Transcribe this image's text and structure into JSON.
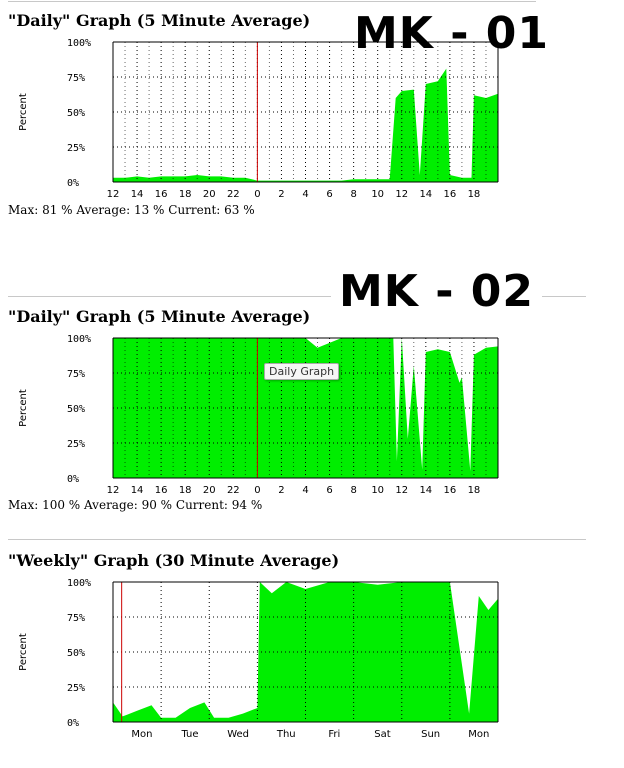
{
  "labels": {
    "mk01": "MK - 01",
    "mk02": "MK - 02",
    "tooltip": "Daily Graph"
  },
  "graphs": [
    {
      "title": "\"Daily\" Graph (5 Minute Average)",
      "stats": "Max: 81 % Average: 13 % Current: 63 %"
    },
    {
      "title": "\"Daily\" Graph (5 Minute Average)",
      "stats": "Max: 100 % Average: 90 % Current: 94 %"
    },
    {
      "title": "\"Weekly\" Graph (30 Minute Average)",
      "stats": ""
    }
  ],
  "colors": {
    "fill": "#00ee00",
    "marker": "#cc0000",
    "grid": "#000000",
    "frame": "#000000"
  },
  "chart_data": [
    {
      "type": "area",
      "title": "\"Daily\" Graph (5 Minute Average)",
      "ylabel": "Percent",
      "ylim": [
        0,
        100
      ],
      "yticks": [
        "0%",
        "25%",
        "50%",
        "75%",
        "100%"
      ],
      "xticks": [
        "12",
        "14",
        "16",
        "18",
        "20",
        "22",
        "0",
        "2",
        "4",
        "6",
        "8",
        "10",
        "12",
        "14",
        "16",
        "18"
      ],
      "xlim": [
        0,
        32
      ],
      "marker_x": 12,
      "grid": true,
      "x": [
        0,
        1,
        2,
        3,
        4,
        5,
        6,
        7,
        8,
        9,
        10,
        11,
        12,
        13,
        14,
        15,
        16,
        17,
        18,
        19,
        20,
        21,
        22,
        23,
        23.5,
        24,
        25,
        25.5,
        26,
        27,
        27.7,
        28,
        29,
        29.8,
        30,
        31,
        32
      ],
      "series": [
        {
          "values": [
            3,
            3,
            4,
            3,
            4,
            4,
            4,
            5,
            4,
            4,
            3,
            3,
            1,
            1,
            1,
            1,
            1,
            1,
            1,
            1,
            2,
            2,
            2,
            2,
            60,
            65,
            66,
            5,
            70,
            72,
            81,
            5,
            3,
            3,
            62,
            60,
            63
          ]
        }
      ]
    },
    {
      "type": "area",
      "title": "\"Daily\" Graph (5 Minute Average)",
      "ylabel": "Percent",
      "ylim": [
        0,
        100
      ],
      "yticks": [
        "0%",
        "25%",
        "50%",
        "75%",
        "100%"
      ],
      "xticks": [
        "12",
        "14",
        "16",
        "18",
        "20",
        "22",
        "0",
        "2",
        "4",
        "6",
        "8",
        "10",
        "12",
        "14",
        "16",
        "18"
      ],
      "xlim": [
        0,
        32
      ],
      "marker_x": 12,
      "grid": true,
      "x": [
        0,
        4,
        8,
        12,
        14,
        15.5,
        16,
        17,
        19,
        20,
        22,
        23.3,
        23.6,
        24,
        24.5,
        25,
        25.7,
        26,
        27,
        28,
        28.8,
        29,
        29.7,
        30,
        31,
        32
      ],
      "series": [
        {
          "values": [
            100,
            100,
            100,
            100,
            100,
            100,
            100,
            93,
            100,
            100,
            100,
            100,
            12,
            100,
            28,
            80,
            6,
            90,
            92,
            90,
            68,
            72,
            5,
            88,
            93,
            94
          ]
        }
      ]
    },
    {
      "type": "area",
      "title": "\"Weekly\" Graph (30 Minute Average)",
      "ylabel": "Percent",
      "ylim": [
        0,
        100
      ],
      "yticks": [
        "0%",
        "25%",
        "50%",
        "75%",
        "100%"
      ],
      "xticks": [
        "Mon",
        "Tue",
        "Wed",
        "Thu",
        "Fri",
        "Sat",
        "Sun",
        "Mon"
      ],
      "xlim": [
        0,
        8
      ],
      "marker_x": 0.18,
      "grid": true,
      "x": [
        0,
        0.2,
        0.5,
        0.8,
        1.0,
        1.3,
        1.6,
        1.9,
        2.1,
        2.4,
        2.7,
        3.0,
        3.05,
        3.3,
        3.6,
        4.0,
        4.5,
        5.0,
        5.5,
        6.0,
        6.5,
        7.0,
        7.4,
        7.6,
        7.8,
        8.0
      ],
      "series": [
        {
          "values": [
            14,
            4,
            8,
            12,
            3,
            3,
            10,
            14,
            3,
            3,
            6,
            10,
            100,
            92,
            100,
            95,
            100,
            100,
            98,
            100,
            100,
            100,
            6,
            90,
            80,
            88
          ]
        }
      ]
    }
  ]
}
